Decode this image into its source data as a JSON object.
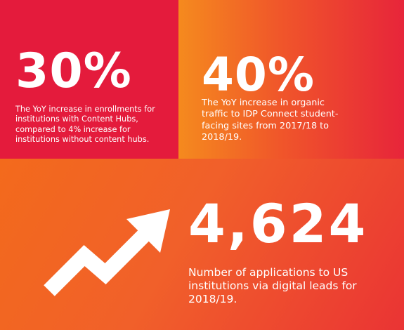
{
  "stats": [
    {
      "value": "30%",
      "description": "The YoY increase in enrollments for\ninstitutions with Content Hubs,\ncompared to 4% increase for\ninstitutions without content hubs."
    },
    {
      "value": "40%",
      "description": "The YoY increase in organic\ntraffic to IDP Connect student-\nfacing sites from 2017/18 to\n2018/19."
    },
    {
      "value": "4,624",
      "description": "Number of applications to US\ninstitutions via digital leads for\n2018/19."
    }
  ],
  "icon": "trending-up-arrow-icon",
  "colors": {
    "red_panel": "#e41b3c",
    "orange": "#f58a1e",
    "text": "#ffffff"
  }
}
